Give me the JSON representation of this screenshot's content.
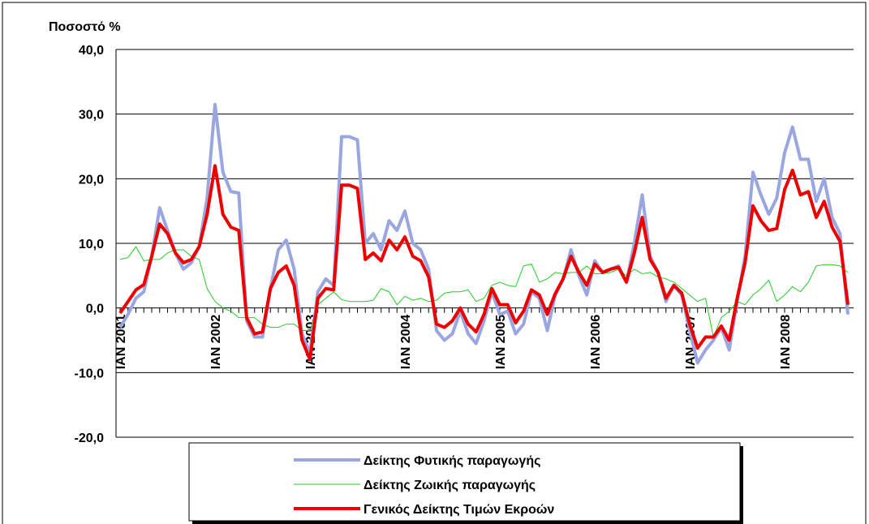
{
  "chart_data": {
    "type": "line",
    "title": "Ποσοστό %",
    "categories": [
      "IAN 2001",
      null,
      null,
      null,
      null,
      null,
      null,
      null,
      null,
      null,
      null,
      null,
      "IAN 2002",
      null,
      null,
      null,
      null,
      null,
      null,
      null,
      null,
      null,
      null,
      null,
      "IAN 2003",
      null,
      null,
      null,
      null,
      null,
      null,
      null,
      null,
      null,
      null,
      null,
      "IAN 2004",
      null,
      null,
      null,
      null,
      null,
      null,
      null,
      null,
      null,
      null,
      null,
      "IAN 2005",
      null,
      null,
      null,
      null,
      null,
      null,
      null,
      null,
      null,
      null,
      null,
      "IAN 2006",
      null,
      null,
      null,
      null,
      null,
      null,
      null,
      null,
      null,
      null,
      null,
      "IAN 2007",
      null,
      null,
      null,
      null,
      null,
      null,
      null,
      null,
      null,
      null,
      null,
      "IAN 2008",
      null,
      null,
      null,
      null,
      null,
      null,
      null,
      null
    ],
    "series": [
      {
        "name": "Δείκτης Φυτικής παραγωγής",
        "color": "#9aa6e0",
        "values": [
          -3,
          -1,
          1.5,
          2.5,
          8,
          15.5,
          12,
          8.5,
          6,
          7,
          9.5,
          17,
          31.5,
          21,
          18,
          17.8,
          -2,
          -4.5,
          -4.5,
          3,
          9,
          10.5,
          6,
          -4,
          -7,
          2.5,
          4.5,
          3.5,
          26.5,
          26.5,
          26,
          10,
          11.5,
          9,
          13.5,
          12,
          15,
          10,
          9,
          6,
          -3.5,
          -5,
          -4,
          -0.5,
          -4,
          -5.5,
          -2,
          2.5,
          -1,
          -0.5,
          -4,
          -2.5,
          2.5,
          1.5,
          -3.5,
          2,
          4.5,
          9,
          5,
          2,
          7.3,
          5.5,
          6,
          6.5,
          4,
          10,
          17.5,
          8,
          5.5,
          1,
          3.5,
          2,
          -3.5,
          -8.5,
          -6.5,
          -5,
          -3,
          -6.5,
          1,
          8,
          21,
          17.5,
          14.5,
          17,
          24,
          28,
          23,
          23,
          16.5,
          20,
          14,
          11.5,
          -1
        ]
      },
      {
        "name": "Δείκτης Ζωικής παραγωγής",
        "color": "#22cc22",
        "values": [
          7.5,
          7.8,
          9.5,
          7.3,
          7.5,
          7.5,
          8.5,
          9,
          9,
          8,
          7.5,
          3,
          1,
          0,
          -0.5,
          -1.5,
          -1.5,
          -1.5,
          -2.5,
          -3,
          -3,
          -2.5,
          -2.5,
          -3.5,
          -3.5,
          0.5,
          1.5,
          2.5,
          1.3,
          1,
          1,
          1,
          1.2,
          3,
          2.5,
          0.5,
          1.8,
          1.2,
          1.5,
          1,
          1.2,
          2.3,
          2.5,
          2.5,
          2.8,
          1,
          1.5,
          3.5,
          4,
          3.5,
          3.3,
          6.5,
          6.8,
          4,
          4.5,
          5.5,
          5.3,
          5.5,
          5.5,
          6.5,
          5.3,
          5.3,
          5.5,
          6,
          5,
          6,
          5.3,
          5.5,
          4.8,
          4.5,
          4,
          3,
          2,
          1,
          1.5,
          -4.5,
          -1.5,
          -0.5,
          1,
          0.5,
          2,
          3,
          4.3,
          1,
          2,
          3.3,
          2.5,
          4,
          6.5,
          6.7,
          6.7,
          6.5,
          5.5
        ]
      },
      {
        "name": "Γενικός Δείκτης Τιμών Εκροών",
        "color": "#ee0000",
        "values": [
          -0.8,
          1,
          2.8,
          3.6,
          8,
          13,
          11.5,
          8.5,
          7,
          7.5,
          9.5,
          14.5,
          22,
          14.5,
          12.5,
          12,
          -1.5,
          -4,
          -3.7,
          3,
          5.5,
          6.5,
          3.5,
          -5,
          -8,
          1.5,
          3,
          2.8,
          19,
          19,
          18.5,
          7.5,
          8.5,
          7.3,
          10.5,
          9,
          11,
          8,
          7.3,
          4.8,
          -2.5,
          -3,
          -2,
          0,
          -2.5,
          -3.7,
          -1,
          3,
          0.5,
          0.5,
          -2.3,
          -0.5,
          2.8,
          2,
          -1,
          2.2,
          4.5,
          8,
          5.5,
          3.5,
          6.8,
          5.5,
          6,
          6.3,
          4,
          8.5,
          14,
          7.5,
          5.5,
          1.5,
          3.5,
          2.3,
          -2.5,
          -6.2,
          -4.5,
          -4.5,
          -2.8,
          -5,
          1.5,
          7,
          15.8,
          13.5,
          12,
          12.3,
          18.3,
          21.3,
          17.5,
          18,
          14,
          16.5,
          12.5,
          10.3,
          0.5
        ]
      }
    ],
    "ylim": [
      -20,
      40
    ],
    "yticks": [
      {
        "value": -20,
        "label": "-20,0"
      },
      {
        "value": -10,
        "label": "-10,0"
      },
      {
        "value": 0,
        "label": "0,0"
      },
      {
        "value": 10,
        "label": "10,0"
      },
      {
        "value": 20,
        "label": "20,0"
      },
      {
        "value": 30,
        "label": "30,0"
      },
      {
        "value": 40,
        "label": "40,0"
      }
    ],
    "grid": true,
    "legend": "bottom"
  }
}
